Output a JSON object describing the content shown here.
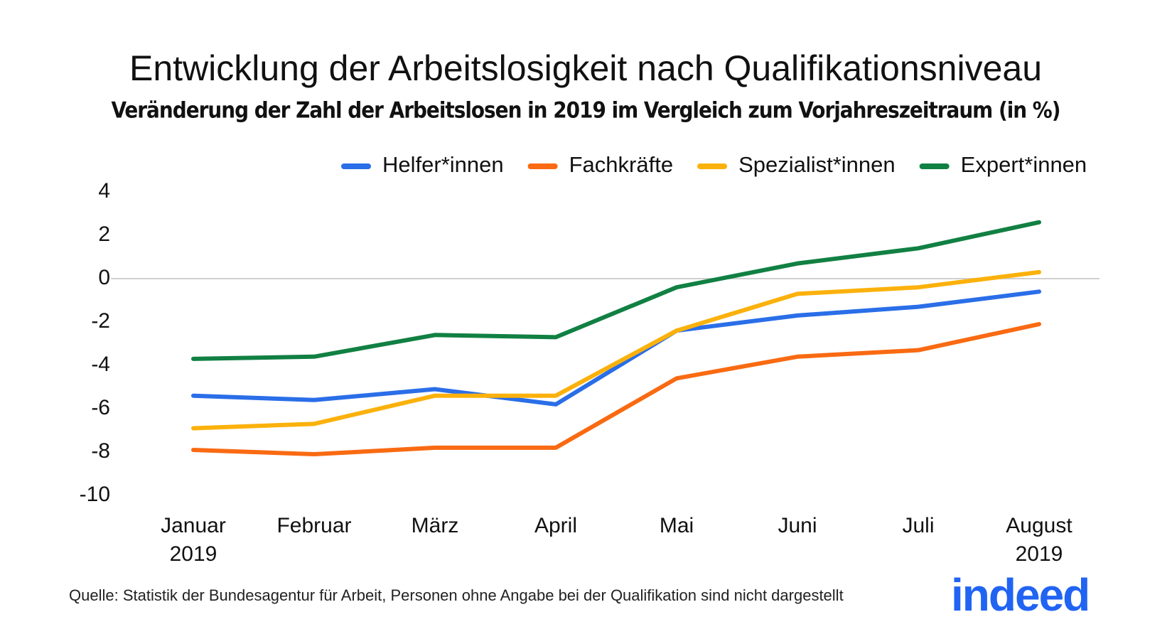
{
  "chart_data": {
    "type": "line",
    "title": "Entwicklung der Arbeitslosigkeit nach Qualifikationsniveau",
    "subtitle": "Veränderung der Zahl der Arbeitslosen in 2019 im Vergleich zum Vorjahreszeitraum (in %)",
    "categories": [
      "Januar\n2019",
      "Februar",
      "März",
      "April",
      "Mai",
      "Juni",
      "Juli",
      "August\n2019"
    ],
    "series": [
      {
        "name": "Helfer*innen",
        "color": "#2a6ee8",
        "values": [
          -5.4,
          -5.6,
          -5.1,
          -5.8,
          -2.4,
          -1.7,
          -1.3,
          -0.6
        ]
      },
      {
        "name": "Fachkräfte",
        "color": "#f96a12",
        "values": [
          -7.9,
          -8.1,
          -7.8,
          -7.8,
          -4.6,
          -3.6,
          -3.3,
          -2.1
        ]
      },
      {
        "name": "Spezialist*innen",
        "color": "#fbb10c",
        "values": [
          -6.9,
          -6.7,
          -5.4,
          -5.4,
          -2.4,
          -0.7,
          -0.4,
          0.3
        ]
      },
      {
        "name": "Expert*innen",
        "color": "#118043",
        "values": [
          -3.7,
          -3.6,
          -2.6,
          -2.7,
          -0.4,
          0.7,
          1.4,
          2.6
        ]
      }
    ],
    "ylim": [
      -10,
      4
    ],
    "yticks": [
      4,
      2,
      0,
      -2,
      -4,
      -6,
      -8,
      -10
    ],
    "grid": false,
    "legend": "top"
  },
  "source": "Quelle: Statistik der Bundesagentur für Arbeit, Personen ohne Angabe bei der Qualifikation sind nicht dargestellt",
  "logo": "indeed"
}
